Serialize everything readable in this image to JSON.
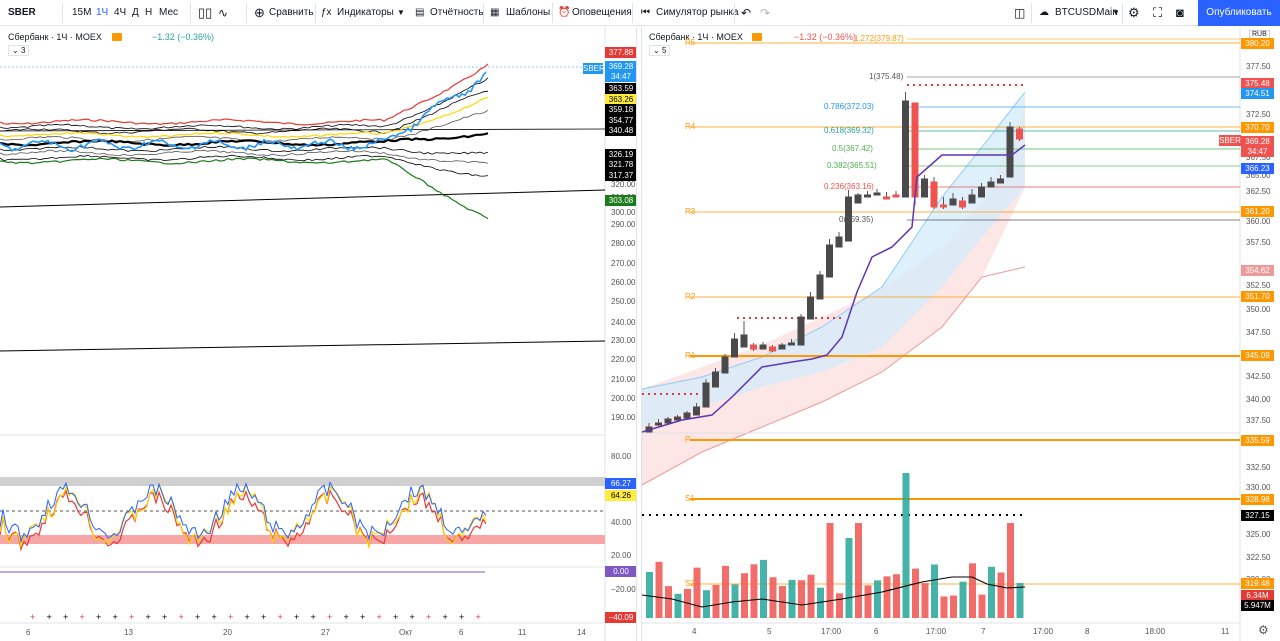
{
  "toolbar": {
    "symbol": "SBER",
    "intervals": [
      "15М",
      "1Ч",
      "4Ч",
      "Д",
      "Н",
      "Мес"
    ],
    "compare": "Сравнить",
    "indicators": "Индикаторы",
    "reports": "Отчётность",
    "templates": "Шаблоны",
    "alerts": "Оповещения",
    "simulator": "Симулятор рынка",
    "layout_name": "BTCUSDMain",
    "publish": "Опубликовать"
  },
  "left_chart": {
    "title": "Сбербанк · 1Ч · MOEX",
    "change": "−1.32 (−0.36%)",
    "indicators_count": "3",
    "price_labels": [
      {
        "v": "377.88",
        "bg": "#e53935",
        "c": "#fff"
      },
      {
        "v": "369.28",
        "bg": "#2196f3",
        "c": "#fff"
      },
      {
        "v": "34:47",
        "bg": "#2196f3",
        "c": "#fff"
      },
      {
        "v": "363.59",
        "bg": "#000",
        "c": "#fff"
      },
      {
        "v": "363.26",
        "bg": "#ffeb3b",
        "c": "#000"
      },
      {
        "v": "359.18",
        "bg": "#000",
        "c": "#fff"
      },
      {
        "v": "354.77",
        "bg": "#000",
        "c": "#fff"
      },
      {
        "v": "340.48",
        "bg": "#000",
        "c": "#fff"
      },
      {
        "v": "326.19",
        "bg": "#000",
        "c": "#fff"
      },
      {
        "v": "321.78",
        "bg": "#000",
        "c": "#fff"
      },
      {
        "v": "317.37",
        "bg": "#000",
        "c": "#fff"
      },
      {
        "v": "303.08",
        "bg": "#1b7a1b",
        "c": "#fff"
      }
    ],
    "sber_tag": "SBER",
    "axis": [
      "320.00",
      "310.00",
      "300.00",
      "290.00",
      "280.00",
      "270.00",
      "260.00",
      "250.00",
      "240.00",
      "230.00",
      "220.00",
      "210.00",
      "200.00",
      "190.00"
    ],
    "osc_axis": [
      "80.00",
      "40.00",
      "20.00",
      "−20.00"
    ],
    "osc_labels": [
      {
        "v": "66.27",
        "bg": "#2962ff",
        "c": "#fff"
      },
      {
        "v": "64.26",
        "bg": "#ffeb3b",
        "c": "#000"
      },
      {
        "v": "0.00",
        "bg": "#7e57c2",
        "c": "#fff"
      },
      {
        "v": "−40.09",
        "bg": "#e53935",
        "c": "#fff"
      }
    ],
    "time_axis": [
      "6",
      "13",
      "20",
      "27",
      "Окт",
      "6",
      "11",
      "14"
    ]
  },
  "right_chart": {
    "title": "Сбербанк · 1Ч · MOEX",
    "change": "−1.32 (−0.36%)",
    "indicators_count": "5",
    "currency": "RUB",
    "axis": [
      "377.50",
      "375.00",
      "372.50",
      "367.50",
      "365.00",
      "362.50",
      "360.00",
      "357.50",
      "352.50",
      "350.00",
      "347.50",
      "342.50",
      "340.00",
      "337.50",
      "332.50",
      "330.00",
      "325.00",
      "322.50",
      "320.00",
      "317.50"
    ],
    "price_labels": [
      {
        "v": "380.20",
        "bg": "#ff9800"
      },
      {
        "v": "375.48",
        "bg": "#ef5350"
      },
      {
        "v": "374.51",
        "bg": "#2196f3"
      },
      {
        "v": "370.70",
        "bg": "#ff9800"
      },
      {
        "v": "369.28",
        "bg": "#ef5350"
      },
      {
        "v": "34:47",
        "bg": "#ef5350"
      },
      {
        "v": "366.23",
        "bg": "#2962ff"
      },
      {
        "v": "361.20",
        "bg": "#ff9800"
      },
      {
        "v": "354.62",
        "bg": "#ef9a9a"
      },
      {
        "v": "351.70",
        "bg": "#ff9800"
      },
      {
        "v": "345.09",
        "bg": "#ff9800"
      },
      {
        "v": "335.59",
        "bg": "#ff9800"
      },
      {
        "v": "328.98",
        "bg": "#ff9800"
      },
      {
        "v": "327.15",
        "bg": "#000"
      },
      {
        "v": "319.48",
        "bg": "#ff9800"
      },
      {
        "v": "6.34M",
        "bg": "#e53935"
      },
      {
        "v": "5.947M",
        "bg": "#000"
      }
    ],
    "sber_tag": "SBER",
    "fib": [
      "1.272(379.87)",
      "1(375.48)",
      "0.786(372.03)",
      "0.618(369.32)",
      "0.5(367.42)",
      "0.382(365.51)",
      "0.236(363.16)",
      "0(359.35)"
    ],
    "pivots": [
      "R5",
      "R4",
      "R3",
      "R2",
      "R1",
      "P",
      "S1",
      "S2"
    ],
    "time_axis": [
      "4",
      "5",
      "17:00",
      "6",
      "17:00",
      "7",
      "17:00",
      "8",
      "18:00",
      "11"
    ]
  }
}
